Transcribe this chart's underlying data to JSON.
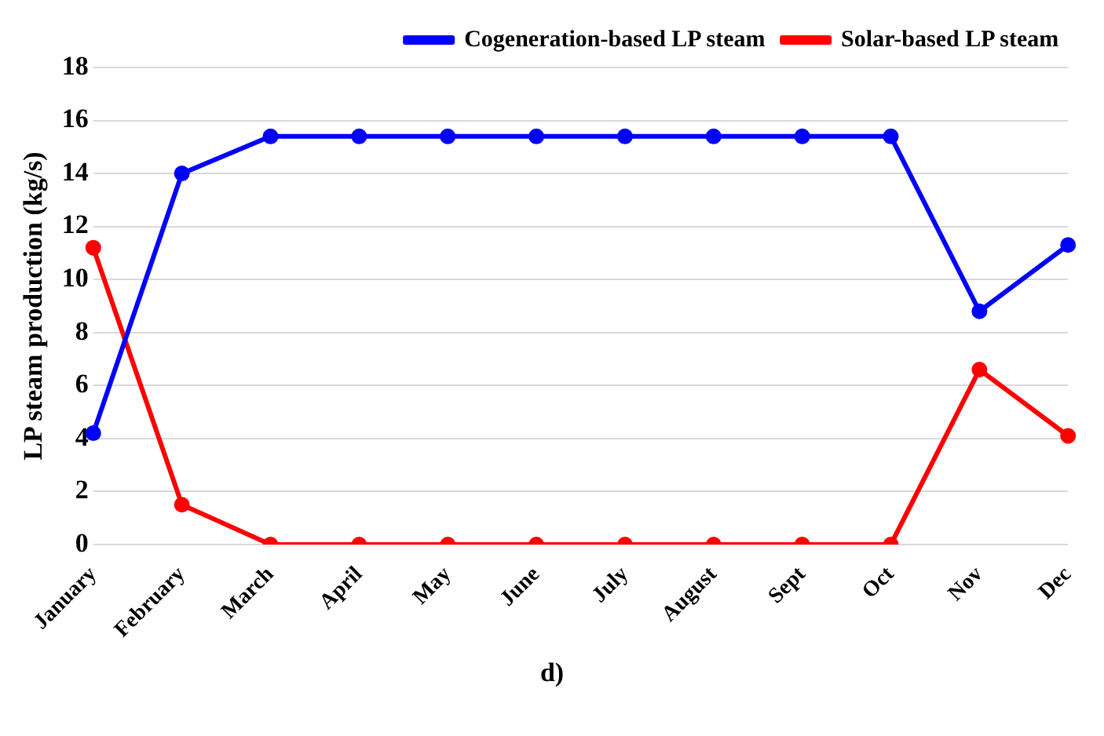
{
  "chart_data": {
    "type": "line",
    "ylabel": "LP steam production (kg/s)",
    "categories": [
      "January",
      "February",
      "March",
      "April",
      "May",
      "June",
      "July",
      "August",
      "Sept",
      "Oct",
      "Nov",
      "Dec"
    ],
    "series": [
      {
        "name": "Cogeneration-based LP steam",
        "color": "#0000ff",
        "values": [
          4.2,
          14.0,
          15.4,
          15.4,
          15.4,
          15.4,
          15.4,
          15.4,
          15.4,
          15.4,
          8.8,
          11.3
        ]
      },
      {
        "name": "Solar-based LP steam",
        "color": "#ff0000",
        "values": [
          11.2,
          1.5,
          0,
          0,
          0,
          0,
          0,
          0,
          0,
          0,
          6.6,
          4.1
        ]
      }
    ],
    "ylim": [
      0,
      18
    ],
    "yticks": [
      0,
      2,
      4,
      6,
      8,
      10,
      12,
      14,
      16,
      18
    ],
    "grid": "y",
    "legend": "top right",
    "marker": "circle",
    "line_style": "solid",
    "annotations": [
      "d)"
    ]
  }
}
